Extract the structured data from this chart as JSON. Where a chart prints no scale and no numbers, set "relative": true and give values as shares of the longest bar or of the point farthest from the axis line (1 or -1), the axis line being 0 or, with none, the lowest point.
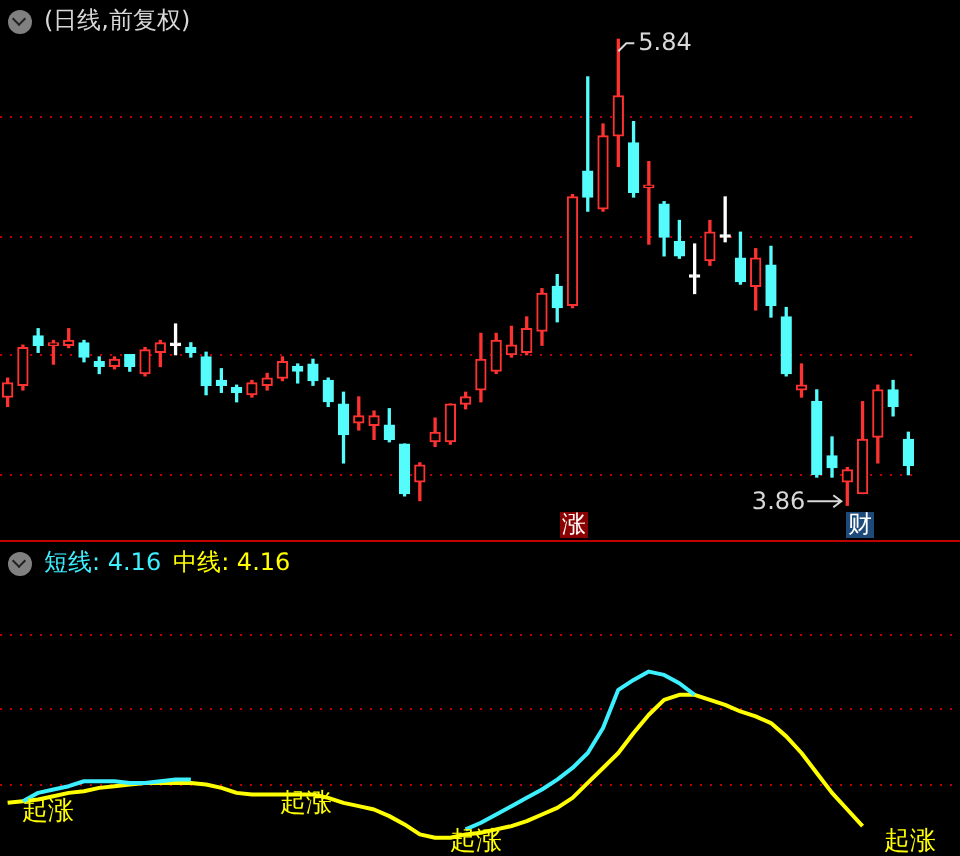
{
  "chart_data": [
    {
      "type": "candlestick",
      "title": "(日线,前复权)",
      "categories": [
        null,
        null,
        null,
        null,
        null,
        null,
        null,
        null,
        null,
        null,
        null,
        null,
        null,
        null,
        null,
        null,
        null,
        null,
        null,
        null,
        null,
        null,
        null,
        null,
        null,
        null,
        null,
        null,
        null,
        null,
        null,
        null,
        null,
        null,
        null,
        null,
        null,
        null,
        null,
        null,
        null,
        null,
        null,
        null,
        null,
        null,
        null,
        null,
        null,
        null,
        null,
        null,
        null,
        null,
        null,
        null,
        null,
        null,
        null,
        null
      ],
      "ohlc": [
        [
          4.32,
          4.4,
          4.28,
          4.38
        ],
        [
          4.37,
          4.54,
          4.35,
          4.53
        ],
        [
          4.58,
          4.61,
          4.51,
          4.54
        ],
        [
          4.54,
          4.56,
          4.46,
          4.55
        ],
        [
          4.54,
          4.61,
          4.53,
          4.56
        ],
        [
          4.55,
          4.56,
          4.47,
          4.49
        ],
        [
          4.47,
          4.49,
          4.42,
          4.45
        ],
        [
          4.45,
          4.49,
          4.44,
          4.48
        ],
        [
          4.5,
          4.5,
          4.43,
          4.45
        ],
        [
          4.42,
          4.53,
          4.41,
          4.52
        ],
        [
          4.51,
          4.56,
          4.45,
          4.55
        ],
        [
          4.54,
          4.63,
          4.5,
          4.54
        ],
        [
          4.53,
          4.55,
          4.49,
          4.51
        ],
        [
          4.49,
          4.51,
          4.33,
          4.37
        ],
        [
          4.39,
          4.44,
          4.34,
          4.37
        ],
        [
          4.36,
          4.37,
          4.3,
          4.34
        ],
        [
          4.33,
          4.39,
          4.32,
          4.38
        ],
        [
          4.37,
          4.42,
          4.35,
          4.4
        ],
        [
          4.4,
          4.49,
          4.39,
          4.47
        ],
        [
          4.45,
          4.46,
          4.38,
          4.43
        ],
        [
          4.46,
          4.48,
          4.37,
          4.39
        ],
        [
          4.39,
          4.4,
          4.28,
          4.3
        ],
        [
          4.29,
          4.34,
          4.04,
          4.16
        ],
        [
          4.21,
          4.32,
          4.18,
          4.24
        ],
        [
          4.2,
          4.26,
          4.14,
          4.24
        ],
        [
          4.2,
          4.27,
          4.13,
          4.14
        ],
        [
          4.12,
          4.12,
          3.9,
          3.91
        ],
        [
          3.96,
          4.04,
          3.88,
          4.03
        ],
        [
          4.13,
          4.23,
          4.11,
          4.17
        ],
        [
          4.13,
          4.29,
          4.12,
          4.29
        ],
        [
          4.29,
          4.34,
          4.27,
          4.32
        ],
        [
          4.35,
          4.59,
          4.3,
          4.48
        ],
        [
          4.43,
          4.59,
          4.42,
          4.56
        ],
        [
          4.5,
          4.62,
          4.49,
          4.54
        ],
        [
          4.51,
          4.66,
          4.5,
          4.61
        ],
        [
          4.6,
          4.78,
          4.54,
          4.76
        ],
        [
          4.79,
          4.84,
          4.64,
          4.7
        ],
        [
          4.71,
          5.18,
          4.7,
          5.17
        ],
        [
          5.28,
          5.68,
          5.11,
          5.17
        ],
        [
          5.12,
          5.48,
          5.11,
          5.43
        ],
        [
          5.43,
          5.84,
          5.3,
          5.6
        ],
        [
          5.4,
          5.49,
          5.17,
          5.19
        ],
        [
          5.21,
          5.32,
          4.97,
          5.22
        ],
        [
          5.14,
          5.15,
          4.92,
          5.0
        ],
        [
          4.98,
          5.07,
          4.91,
          4.92
        ],
        [
          4.83,
          4.97,
          4.76,
          4.83
        ],
        [
          4.9,
          5.07,
          4.88,
          5.02
        ],
        [
          5.0,
          5.17,
          4.98,
          5.0
        ],
        [
          4.91,
          5.02,
          4.8,
          4.81
        ],
        [
          4.79,
          4.95,
          4.69,
          4.91
        ],
        [
          4.88,
          4.96,
          4.66,
          4.71
        ],
        [
          4.66,
          4.7,
          4.41,
          4.42
        ],
        [
          4.35,
          4.46,
          4.32,
          4.37
        ],
        [
          4.3,
          4.35,
          3.98,
          3.99
        ],
        [
          4.07,
          4.15,
          3.98,
          4.02
        ],
        [
          3.96,
          4.02,
          3.86,
          4.01
        ],
        [
          3.91,
          4.3,
          3.91,
          4.14
        ],
        [
          4.15,
          4.37,
          4.04,
          4.35
        ],
        [
          4.35,
          4.39,
          4.24,
          4.28
        ],
        [
          4.14,
          4.17,
          3.99,
          4.03
        ]
      ],
      "colors": [
        "#ff3232",
        "#ff3232",
        "#54fcfc",
        "#ff3232",
        "#ff3232",
        "#54fcfc",
        "#54fcfc",
        "#ff3232",
        "#54fcfc",
        "#ff3232",
        "#ff3232",
        "#ffffff",
        "#54fcfc",
        "#54fcfc",
        "#54fcfc",
        "#54fcfc",
        "#ff3232",
        "#ff3232",
        "#ff3232",
        "#54fcfc",
        "#54fcfc",
        "#54fcfc",
        "#54fcfc",
        "#ff3232",
        "#ff3232",
        "#54fcfc",
        "#54fcfc",
        "#ff3232",
        "#ff3232",
        "#ff3232",
        "#ff3232",
        "#ff3232",
        "#ff3232",
        "#ff3232",
        "#ff3232",
        "#ff3232",
        "#54fcfc",
        "#ff3232",
        "#54fcfc",
        "#ff3232",
        "#ff3232",
        "#54fcfc",
        "#ff3232",
        "#54fcfc",
        "#54fcfc",
        "#ffffff",
        "#ff3232",
        "#ffffff",
        "#54fcfc",
        "#ff3232",
        "#54fcfc",
        "#54fcfc",
        "#ff3232",
        "#54fcfc",
        "#54fcfc",
        "#ff3232",
        "#ff3232",
        "#ff3232",
        "#54fcfc",
        "#54fcfc"
      ],
      "yticks": [
        {
          "value": 3.99,
          "label": null
        },
        {
          "value": 4.5,
          "label": null
        },
        {
          "value": 5.0,
          "label": null
        },
        {
          "value": 5.51,
          "label": null
        }
      ],
      "grid": "y",
      "tick_labels": false,
      "annotations": [
        "5.84",
        "3.86",
        "涨",
        "财"
      ]
    },
    {
      "type": "line",
      "relative": true,
      "legend": "top left",
      "marker": "none",
      "ref_lines": [
        {
          "axis": "y",
          "value": 1.23,
          "color": "#c00000",
          "line_style": "dotted"
        },
        {
          "axis": "y",
          "value": 0.78,
          "color": "#c00000",
          "line_style": "dotted"
        },
        {
          "axis": "y",
          "value": 0.32,
          "color": "#c00000",
          "line_style": "dotted"
        }
      ],
      "categories": [
        null,
        null,
        null,
        null,
        null,
        null,
        null,
        null,
        null,
        null,
        null,
        null,
        null,
        null,
        null,
        null,
        null,
        null,
        null,
        null,
        null,
        null,
        null,
        null,
        null,
        null,
        null,
        null,
        null,
        null,
        null,
        null,
        null,
        null,
        null,
        null,
        null,
        null,
        null,
        null,
        null,
        null,
        null,
        null,
        null,
        null,
        null,
        null,
        null,
        null,
        null,
        null,
        null,
        null,
        null,
        null,
        null,
        null,
        null,
        null
      ],
      "series": [
        {
          "name": "短线: 4.16",
          "color": "#3cf0ff",
          "values": [
            null,
            0.22,
            0.27,
            0.29,
            0.31,
            0.34,
            0.34,
            0.34,
            0.33,
            0.33,
            0.34,
            0.35,
            0.35,
            null,
            null,
            null,
            null,
            null,
            null,
            null,
            null,
            null,
            null,
            null,
            null,
            null,
            null,
            null,
            null,
            null,
            0.05,
            0.09,
            0.14,
            0.19,
            0.24,
            0.29,
            0.35,
            0.42,
            0.51,
            0.66,
            0.89,
            0.95,
            1,
            0.98,
            0.93,
            0.86,
            null,
            null,
            null,
            null,
            null,
            null,
            null,
            null,
            null,
            null,
            null,
            null,
            null,
            null
          ]
        },
        {
          "name": "中线: 4.16",
          "color": "#ffff00",
          "values": [
            0.21,
            0.22,
            0.23,
            0.25,
            0.27,
            0.28,
            0.3,
            0.31,
            0.32,
            0.33,
            0.33,
            0.33,
            0.33,
            0.32,
            0.3,
            0.27,
            0.26,
            0.26,
            0.26,
            0.26,
            0.26,
            0.24,
            0.21,
            0.19,
            0.17,
            0.13,
            0.08,
            0.02,
            0,
            0,
            0.02,
            0.03,
            0.05,
            0.07,
            0.1,
            0.14,
            0.18,
            0.24,
            0.33,
            0.42,
            0.51,
            0.63,
            0.74,
            0.83,
            0.86,
            0.86,
            0.83,
            0.8,
            0.76,
            0.73,
            0.69,
            0.61,
            0.51,
            0.39,
            0.27,
            0.17,
            0.07,
            null,
            null,
            null
          ]
        }
      ],
      "annotations": [
        "起涨",
        "起涨",
        "起涨",
        "起涨"
      ]
    }
  ]
}
